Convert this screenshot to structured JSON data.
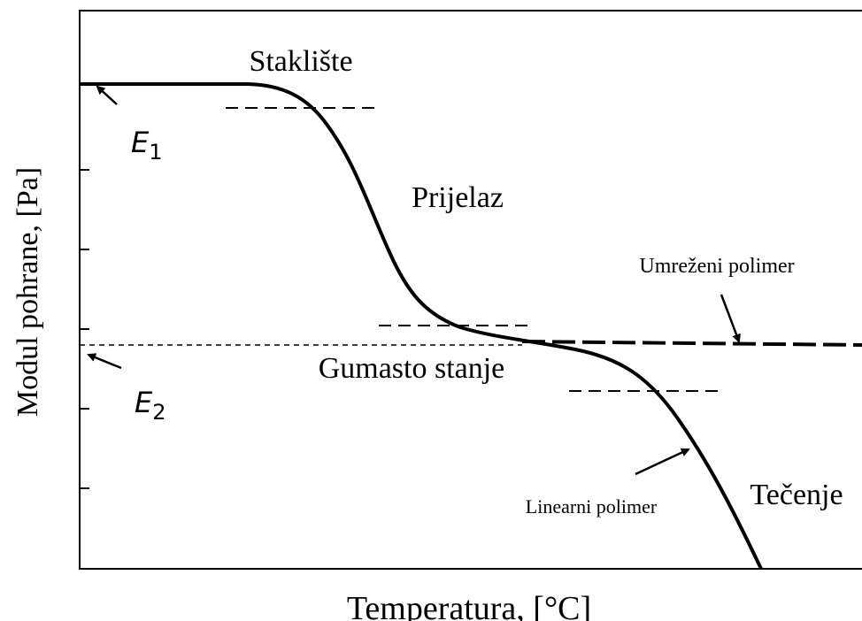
{
  "axes": {
    "y_label": "Modul pohrane, [Pa]",
    "x_label": "Temperatura, [°C]"
  },
  "regions": [
    "Staklište",
    "Prijelaz",
    "Gumasto stanje",
    "Tečenje"
  ],
  "curves": [
    "Umreženi polimer",
    "Linearni polimer"
  ],
  "moduli": [
    {
      "symbol": "E",
      "subscript": "1"
    },
    {
      "symbol": "E",
      "subscript": "2"
    }
  ]
}
